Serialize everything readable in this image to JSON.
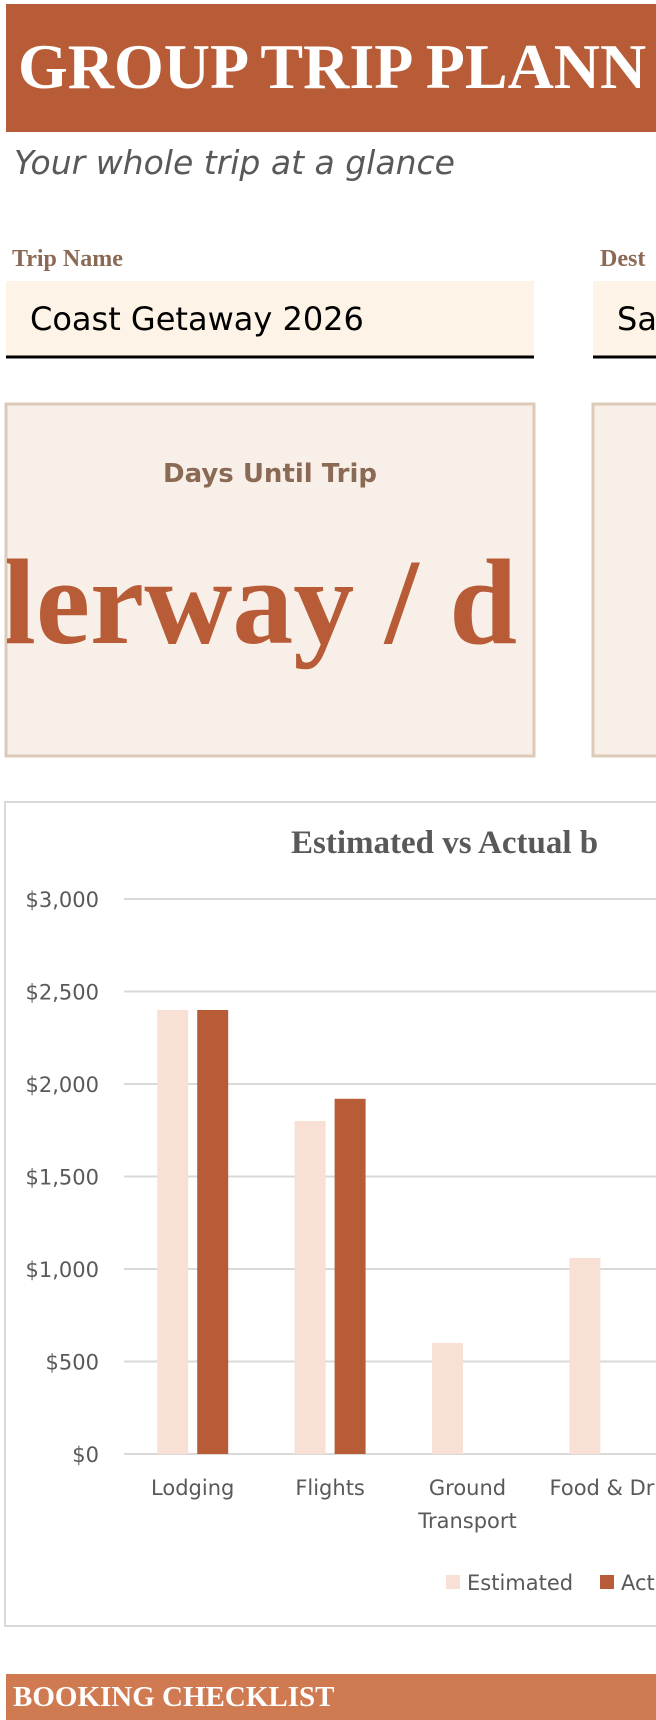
{
  "header": {
    "title": "GROUP TRIP PLANN",
    "subtitle": "Your whole trip at a glance"
  },
  "fields": [
    {
      "label": "Trip Name",
      "value": "Coast Getaway 2026"
    },
    {
      "label": "Dest",
      "value": "Sa"
    }
  ],
  "cards": [
    {
      "label": "Days Until Trip",
      "value": "lerway / d"
    }
  ],
  "chart_data": {
    "type": "bar",
    "title": "Estimated vs Actual b",
    "categories": [
      "Lodging",
      "Flights",
      "Ground Transport",
      "Food & Dri"
    ],
    "series": [
      {
        "name": "Estimated",
        "color": "#f8e0d4",
        "values": [
          2400,
          1800,
          600,
          1060
        ]
      },
      {
        "name": "Act",
        "color": "#b85c38",
        "values": [
          2400,
          1920,
          null,
          null
        ]
      }
    ],
    "ylim": [
      0,
      3000
    ],
    "yticks": [
      {
        "value": 0,
        "label": "$0"
      },
      {
        "value": 500,
        "label": "$500"
      },
      {
        "value": 1000,
        "label": "$1,000"
      },
      {
        "value": 1500,
        "label": "$1,500"
      },
      {
        "value": 2000,
        "label": "$2,000"
      },
      {
        "value": 2500,
        "label": "$2,500"
      },
      {
        "value": 3000,
        "label": "$3,000"
      }
    ],
    "grid": true
  },
  "section": {
    "title": "BOOKING CHECKLIST"
  }
}
